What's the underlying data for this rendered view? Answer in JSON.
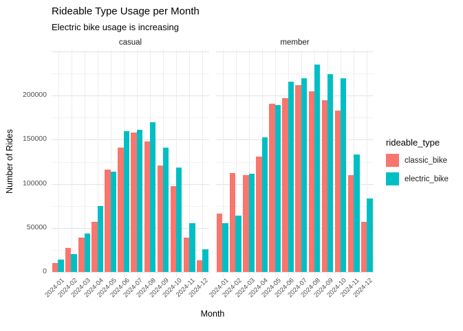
{
  "title": "Rideable Type Usage per Month",
  "subtitle": "Electric bike usage is increasing",
  "legend": {
    "title": "rideable_type",
    "items": [
      {
        "label": "classic_bike",
        "color": "#F8766D"
      },
      {
        "label": "electric_bike",
        "color": "#00BFC4"
      }
    ]
  },
  "chart_data": {
    "type": "bar",
    "title": "Rideable Type Usage per Month",
    "subtitle": "Electric bike usage is increasing",
    "xlabel": "Month",
    "ylabel": "Number of Rides",
    "ylim": [
      0,
      250000
    ],
    "y_tick_values": [
      0,
      50000,
      100000,
      150000,
      200000
    ],
    "y_tick_labels": [
      "0",
      "50000",
      "100000",
      "150000",
      "200000"
    ],
    "y_minor_gridlines": [
      25000,
      75000,
      125000,
      175000,
      225000
    ],
    "y_major_gridlines": [
      0,
      50000,
      100000,
      150000,
      200000,
      250000
    ],
    "grid": true,
    "legend_position": "right",
    "categories": [
      "2024-01",
      "2024-02",
      "2024-03",
      "2024-04",
      "2024-05",
      "2024-06",
      "2024-07",
      "2024-08",
      "2024-09",
      "2024-10",
      "2024-11",
      "2024-12"
    ],
    "facets": [
      {
        "name": "casual",
        "series": [
          {
            "name": "classic_bike",
            "color": "#F8766D",
            "values": [
              10000,
              27000,
              39000,
              57000,
              116000,
              141000,
              158000,
              148000,
              121000,
              97000,
              39000,
              13000
            ]
          },
          {
            "name": "electric_bike",
            "color": "#00BFC4",
            "values": [
              14000,
              20000,
              44000,
              75000,
              114000,
              160000,
              161000,
              170000,
              141000,
              118000,
              55000,
              26000
            ]
          }
        ]
      },
      {
        "name": "member",
        "series": [
          {
            "name": "classic_bike",
            "color": "#F8766D",
            "values": [
              66000,
              112000,
              110000,
              131000,
              191000,
              197000,
              212000,
              205000,
              195000,
              183000,
              110000,
              57000
            ]
          },
          {
            "name": "electric_bike",
            "color": "#00BFC4",
            "values": [
              55000,
              64000,
              111000,
              153000,
              189000,
              216000,
              220000,
              235000,
              224000,
              220000,
              133000,
              83000
            ]
          }
        ]
      }
    ]
  }
}
